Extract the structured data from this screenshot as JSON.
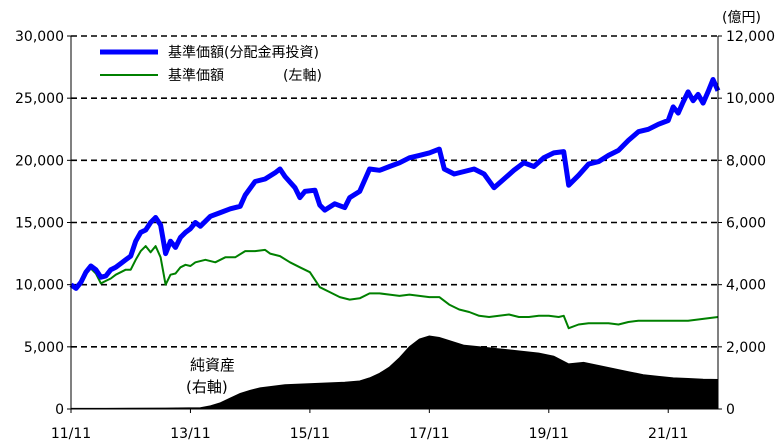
{
  "chart_data": {
    "type": "line",
    "title": "",
    "xlabel": "",
    "ylabel_left": "",
    "ylabel_right": "(億円)",
    "ylim_left": [
      0,
      30000
    ],
    "ylim_right": [
      0,
      12000
    ],
    "yticks_left": [
      "0",
      "5,000",
      "10,000",
      "15,000",
      "20,000",
      "25,000",
      "30,000"
    ],
    "yticks_right": [
      "0",
      "2,000",
      "4,000",
      "6,000",
      "8,000",
      "10,000",
      "12,000"
    ],
    "x_ticks": [
      "11/11",
      "13/11",
      "15/11",
      "17/11",
      "19/11",
      "21/11"
    ],
    "x_range": [
      "2011-11",
      "2022-09"
    ],
    "grid": "horizontal dashed",
    "legend": {
      "placement": "top-left",
      "items": [
        "基準価額(分配金再投資)",
        "基準価額"
      ],
      "note": "(左軸)"
    },
    "annotation": {
      "label": "純資産",
      "sub": "(右軸)"
    },
    "series": [
      {
        "name": "基準価額(分配金再投資)",
        "axis": "left",
        "color": "#0000ff",
        "points": [
          [
            "2011-11",
            10000
          ],
          [
            "2011-12",
            9700
          ],
          [
            "2012-01",
            10200
          ],
          [
            "2012-02",
            11000
          ],
          [
            "2012-03",
            11500
          ],
          [
            "2012-04",
            11200
          ],
          [
            "2012-05",
            10600
          ],
          [
            "2012-06",
            10700
          ],
          [
            "2012-07",
            11200
          ],
          [
            "2012-08",
            11400
          ],
          [
            "2012-09",
            11700
          ],
          [
            "2012-10",
            12000
          ],
          [
            "2012-11",
            12300
          ],
          [
            "2012-12",
            13500
          ],
          [
            "2013-01",
            14200
          ],
          [
            "2013-02",
            14400
          ],
          [
            "2013-03",
            15000
          ],
          [
            "2013-04",
            15400
          ],
          [
            "2013-05",
            14800
          ],
          [
            "2013-06",
            12500
          ],
          [
            "2013-07",
            13500
          ],
          [
            "2013-08",
            13000
          ],
          [
            "2013-09",
            13800
          ],
          [
            "2013-10",
            14200
          ],
          [
            "2013-11",
            14500
          ],
          [
            "2013-12",
            15000
          ],
          [
            "2014-01",
            14700
          ],
          [
            "2014-03",
            15500
          ],
          [
            "2014-05",
            15800
          ],
          [
            "2014-07",
            16100
          ],
          [
            "2014-09",
            16300
          ],
          [
            "2014-10",
            17200
          ],
          [
            "2014-12",
            18300
          ],
          [
            "2015-02",
            18500
          ],
          [
            "2015-04",
            19000
          ],
          [
            "2015-05",
            19300
          ],
          [
            "2015-06",
            18700
          ],
          [
            "2015-08",
            17800
          ],
          [
            "2015-09",
            17000
          ],
          [
            "2015-10",
            17500
          ],
          [
            "2015-12",
            17600
          ],
          [
            "2016-01",
            16400
          ],
          [
            "2016-02",
            16000
          ],
          [
            "2016-04",
            16500
          ],
          [
            "2016-06",
            16200
          ],
          [
            "2016-07",
            17000
          ],
          [
            "2016-09",
            17500
          ],
          [
            "2016-11",
            19300
          ],
          [
            "2017-01",
            19200
          ],
          [
            "2017-03",
            19500
          ],
          [
            "2017-05",
            19800
          ],
          [
            "2017-07",
            20200
          ],
          [
            "2017-09",
            20400
          ],
          [
            "2017-11",
            20600
          ],
          [
            "2018-01",
            20900
          ],
          [
            "2018-02",
            19300
          ],
          [
            "2018-04",
            18900
          ],
          [
            "2018-06",
            19100
          ],
          [
            "2018-08",
            19300
          ],
          [
            "2018-10",
            18900
          ],
          [
            "2018-12",
            17800
          ],
          [
            "2019-02",
            18500
          ],
          [
            "2019-04",
            19200
          ],
          [
            "2019-06",
            19800
          ],
          [
            "2019-08",
            19500
          ],
          [
            "2019-10",
            20200
          ],
          [
            "2019-12",
            20600
          ],
          [
            "2020-02",
            20700
          ],
          [
            "2020-03",
            18000
          ],
          [
            "2020-05",
            18800
          ],
          [
            "2020-07",
            19700
          ],
          [
            "2020-09",
            19900
          ],
          [
            "2020-11",
            20400
          ],
          [
            "2021-01",
            20800
          ],
          [
            "2021-03",
            21600
          ],
          [
            "2021-05",
            22300
          ],
          [
            "2021-07",
            22500
          ],
          [
            "2021-09",
            22900
          ],
          [
            "2021-11",
            23200
          ],
          [
            "2021-12",
            24300
          ],
          [
            "2022-01",
            23800
          ],
          [
            "2022-02",
            24700
          ],
          [
            "2022-03",
            25500
          ],
          [
            "2022-04",
            24800
          ],
          [
            "2022-05",
            25300
          ],
          [
            "2022-06",
            24600
          ],
          [
            "2022-07",
            25500
          ],
          [
            "2022-08",
            26500
          ],
          [
            "2022-09",
            25600
          ]
        ]
      },
      {
        "name": "基準価額",
        "axis": "left",
        "color": "#008000",
        "points": [
          [
            "2011-11",
            10000
          ],
          [
            "2011-12",
            9700
          ],
          [
            "2012-01",
            10200
          ],
          [
            "2012-02",
            11000
          ],
          [
            "2012-03",
            11300
          ],
          [
            "2012-04",
            10900
          ],
          [
            "2012-05",
            10100
          ],
          [
            "2012-06",
            10300
          ],
          [
            "2012-07",
            10500
          ],
          [
            "2012-08",
            10800
          ],
          [
            "2012-09",
            11000
          ],
          [
            "2012-10",
            11200
          ],
          [
            "2012-11",
            11200
          ],
          [
            "2012-12",
            12000
          ],
          [
            "2013-01",
            12700
          ],
          [
            "2013-02",
            13100
          ],
          [
            "2013-03",
            12600
          ],
          [
            "2013-04",
            13100
          ],
          [
            "2013-05",
            12200
          ],
          [
            "2013-06",
            10000
          ],
          [
            "2013-07",
            10800
          ],
          [
            "2013-08",
            10900
          ],
          [
            "2013-09",
            11400
          ],
          [
            "2013-10",
            11600
          ],
          [
            "2013-11",
            11500
          ],
          [
            "2013-12",
            11800
          ],
          [
            "2014-02",
            12000
          ],
          [
            "2014-04",
            11800
          ],
          [
            "2014-06",
            12200
          ],
          [
            "2014-08",
            12200
          ],
          [
            "2014-10",
            12700
          ],
          [
            "2014-12",
            12700
          ],
          [
            "2015-02",
            12800
          ],
          [
            "2015-03",
            12500
          ],
          [
            "2015-05",
            12300
          ],
          [
            "2015-07",
            11800
          ],
          [
            "2015-09",
            11400
          ],
          [
            "2015-11",
            11000
          ],
          [
            "2016-01",
            9800
          ],
          [
            "2016-03",
            9400
          ],
          [
            "2016-05",
            9000
          ],
          [
            "2016-07",
            8800
          ],
          [
            "2016-09",
            8900
          ],
          [
            "2016-11",
            9300
          ],
          [
            "2017-01",
            9300
          ],
          [
            "2017-03",
            9200
          ],
          [
            "2017-05",
            9100
          ],
          [
            "2017-07",
            9200
          ],
          [
            "2017-09",
            9100
          ],
          [
            "2017-11",
            9000
          ],
          [
            "2018-01",
            9000
          ],
          [
            "2018-03",
            8400
          ],
          [
            "2018-05",
            8000
          ],
          [
            "2018-07",
            7800
          ],
          [
            "2018-09",
            7500
          ],
          [
            "2018-11",
            7400
          ],
          [
            "2019-01",
            7500
          ],
          [
            "2019-03",
            7600
          ],
          [
            "2019-05",
            7400
          ],
          [
            "2019-07",
            7400
          ],
          [
            "2019-09",
            7500
          ],
          [
            "2019-11",
            7500
          ],
          [
            "2020-01",
            7400
          ],
          [
            "2020-02",
            7500
          ],
          [
            "2020-03",
            6500
          ],
          [
            "2020-05",
            6800
          ],
          [
            "2020-07",
            6900
          ],
          [
            "2020-09",
            6900
          ],
          [
            "2020-11",
            6900
          ],
          [
            "2021-01",
            6800
          ],
          [
            "2021-03",
            7000
          ],
          [
            "2021-05",
            7100
          ],
          [
            "2021-07",
            7100
          ],
          [
            "2021-09",
            7100
          ],
          [
            "2021-11",
            7100
          ],
          [
            "2022-01",
            7100
          ],
          [
            "2022-03",
            7100
          ],
          [
            "2022-05",
            7200
          ],
          [
            "2022-07",
            7300
          ],
          [
            "2022-09",
            7400
          ]
        ]
      },
      {
        "name": "純資産",
        "axis": "right",
        "color": "#000000",
        "style": "area",
        "points": [
          [
            "2011-11",
            20
          ],
          [
            "2012-06",
            20
          ],
          [
            "2013-06",
            30
          ],
          [
            "2014-01",
            40
          ],
          [
            "2014-03",
            100
          ],
          [
            "2014-05",
            200
          ],
          [
            "2014-07",
            350
          ],
          [
            "2014-09",
            500
          ],
          [
            "2014-11",
            600
          ],
          [
            "2015-01",
            680
          ],
          [
            "2015-03",
            720
          ],
          [
            "2015-06",
            780
          ],
          [
            "2015-09",
            800
          ],
          [
            "2015-12",
            820
          ],
          [
            "2016-03",
            840
          ],
          [
            "2016-06",
            860
          ],
          [
            "2016-09",
            900
          ],
          [
            "2016-11",
            1000
          ],
          [
            "2017-01",
            1150
          ],
          [
            "2017-03",
            1350
          ],
          [
            "2017-05",
            1650
          ],
          [
            "2017-07",
            2000
          ],
          [
            "2017-09",
            2250
          ],
          [
            "2017-11",
            2350
          ],
          [
            "2018-01",
            2300
          ],
          [
            "2018-03",
            2200
          ],
          [
            "2018-06",
            2050
          ],
          [
            "2018-09",
            2000
          ],
          [
            "2018-12",
            1950
          ],
          [
            "2019-03",
            1900
          ],
          [
            "2019-06",
            1850
          ],
          [
            "2019-09",
            1800
          ],
          [
            "2019-12",
            1700
          ],
          [
            "2020-03",
            1450
          ],
          [
            "2020-06",
            1500
          ],
          [
            "2020-09",
            1400
          ],
          [
            "2020-12",
            1300
          ],
          [
            "2021-03",
            1200
          ],
          [
            "2021-06",
            1100
          ],
          [
            "2021-09",
            1050
          ],
          [
            "2021-12",
            1000
          ],
          [
            "2022-03",
            980
          ],
          [
            "2022-06",
            960
          ],
          [
            "2022-09",
            950
          ]
        ]
      }
    ]
  }
}
